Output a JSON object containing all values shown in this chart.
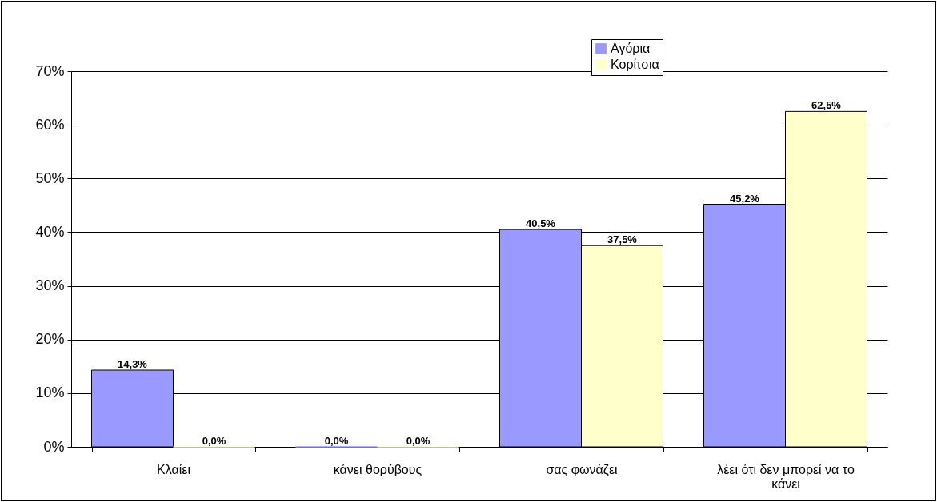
{
  "chart_data": {
    "type": "bar",
    "categories": [
      "Κλαίει",
      "κάνει θορύβους",
      "σας φωνάζει",
      "λέει ότι δεν μπορεί να το κάνει"
    ],
    "series": [
      {
        "name": "Αγόρια",
        "color": "#9999ff",
        "values": [
          14.3,
          0,
          40.5,
          45.2
        ],
        "value_labels": [
          "14,3%",
          "0,0%",
          "40,5%",
          "45,2%"
        ]
      },
      {
        "name": "Κορίτσια",
        "color": "#ffffcc",
        "values": [
          0,
          0,
          37.5,
          62.5
        ],
        "value_labels": [
          "0,0%",
          "0,0%",
          "37,5%",
          "62,5%"
        ]
      }
    ],
    "ylim": [
      0,
      70
    ],
    "yticks": [
      {
        "value": 0,
        "label": "0%"
      },
      {
        "value": 10,
        "label": "10%"
      },
      {
        "value": 20,
        "label": "20%"
      },
      {
        "value": 30,
        "label": "30%"
      },
      {
        "value": 40,
        "label": "40%"
      },
      {
        "value": 50,
        "label": "50%"
      },
      {
        "value": 60,
        "label": "60%"
      },
      {
        "value": 70,
        "label": "70%"
      }
    ],
    "grid": "y",
    "legend": "top right"
  }
}
